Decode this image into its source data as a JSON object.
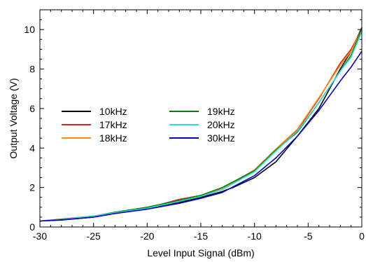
{
  "chart_data": {
    "type": "line",
    "xlabel": "Level Input Signal (dBm)",
    "ylabel": "Output Voltage (V)",
    "xlim": [
      -30,
      0
    ],
    "ylim": [
      0,
      11
    ],
    "xticks": [
      "-30",
      "-25",
      "-20",
      "-15",
      "-10",
      "-5",
      "0"
    ],
    "yticks": [
      "0",
      "2",
      "4",
      "6",
      "8",
      "10"
    ],
    "grid": false,
    "legend_position": "left",
    "series": [
      {
        "name": "10kHz",
        "color": "#000000",
        "x": [
          -30,
          -28,
          -25,
          -23,
          -20,
          -17,
          -15,
          -13,
          -12,
          -10,
          -8,
          -6,
          -4,
          -3,
          -2,
          -1,
          0
        ],
        "y": [
          0.3,
          0.35,
          0.5,
          0.7,
          0.9,
          1.25,
          1.5,
          1.8,
          2.0,
          2.5,
          3.3,
          4.6,
          6.0,
          7.0,
          8.0,
          8.9,
          10.1
        ]
      },
      {
        "name": "17kHz",
        "color": "#e02020",
        "x": [
          -30,
          -28,
          -25,
          -23,
          -20,
          -17,
          -15,
          -13,
          -10,
          -8,
          -6,
          -4,
          -2,
          -1,
          0
        ],
        "y": [
          0.3,
          0.4,
          0.55,
          0.7,
          0.95,
          1.4,
          1.6,
          1.95,
          2.85,
          3.9,
          4.9,
          6.5,
          8.3,
          9.0,
          10.0
        ]
      },
      {
        "name": "18kHz",
        "color": "#ff8c00",
        "x": [
          -30,
          -28,
          -25,
          -23,
          -20,
          -17,
          -15,
          -13,
          -10,
          -8,
          -6,
          -4,
          -2,
          -1,
          0
        ],
        "y": [
          0.3,
          0.38,
          0.55,
          0.72,
          0.95,
          1.35,
          1.6,
          1.95,
          2.9,
          3.95,
          4.95,
          6.55,
          8.2,
          8.9,
          10.0
        ]
      },
      {
        "name": "19kHz",
        "color": "#008000",
        "x": [
          -30,
          -28,
          -25,
          -23,
          -20,
          -17,
          -15,
          -13,
          -10,
          -8,
          -6,
          -4,
          -2,
          -1,
          0
        ],
        "y": [
          0.3,
          0.38,
          0.55,
          0.75,
          1.0,
          1.35,
          1.6,
          2.0,
          2.85,
          3.9,
          4.8,
          6.3,
          7.9,
          8.7,
          10.0
        ]
      },
      {
        "name": "20kHz",
        "color": "#22e0e0",
        "x": [
          -30,
          -28,
          -25,
          -23,
          -20,
          -17,
          -15,
          -13,
          -10,
          -8,
          -6,
          -4,
          -2,
          -1,
          0
        ],
        "y": [
          0.3,
          0.38,
          0.55,
          0.72,
          0.95,
          1.3,
          1.55,
          1.9,
          2.8,
          3.85,
          4.85,
          6.3,
          7.9,
          8.6,
          9.9
        ]
      },
      {
        "name": "30kHz",
        "color": "#0000cc",
        "x": [
          -30,
          -28,
          -25,
          -23,
          -20,
          -17,
          -15,
          -13,
          -10,
          -8,
          -6,
          -4,
          -2,
          -1,
          0
        ],
        "y": [
          0.3,
          0.36,
          0.5,
          0.68,
          0.9,
          1.2,
          1.45,
          1.75,
          2.6,
          3.5,
          4.6,
          5.9,
          7.4,
          8.1,
          8.9
        ]
      }
    ]
  }
}
